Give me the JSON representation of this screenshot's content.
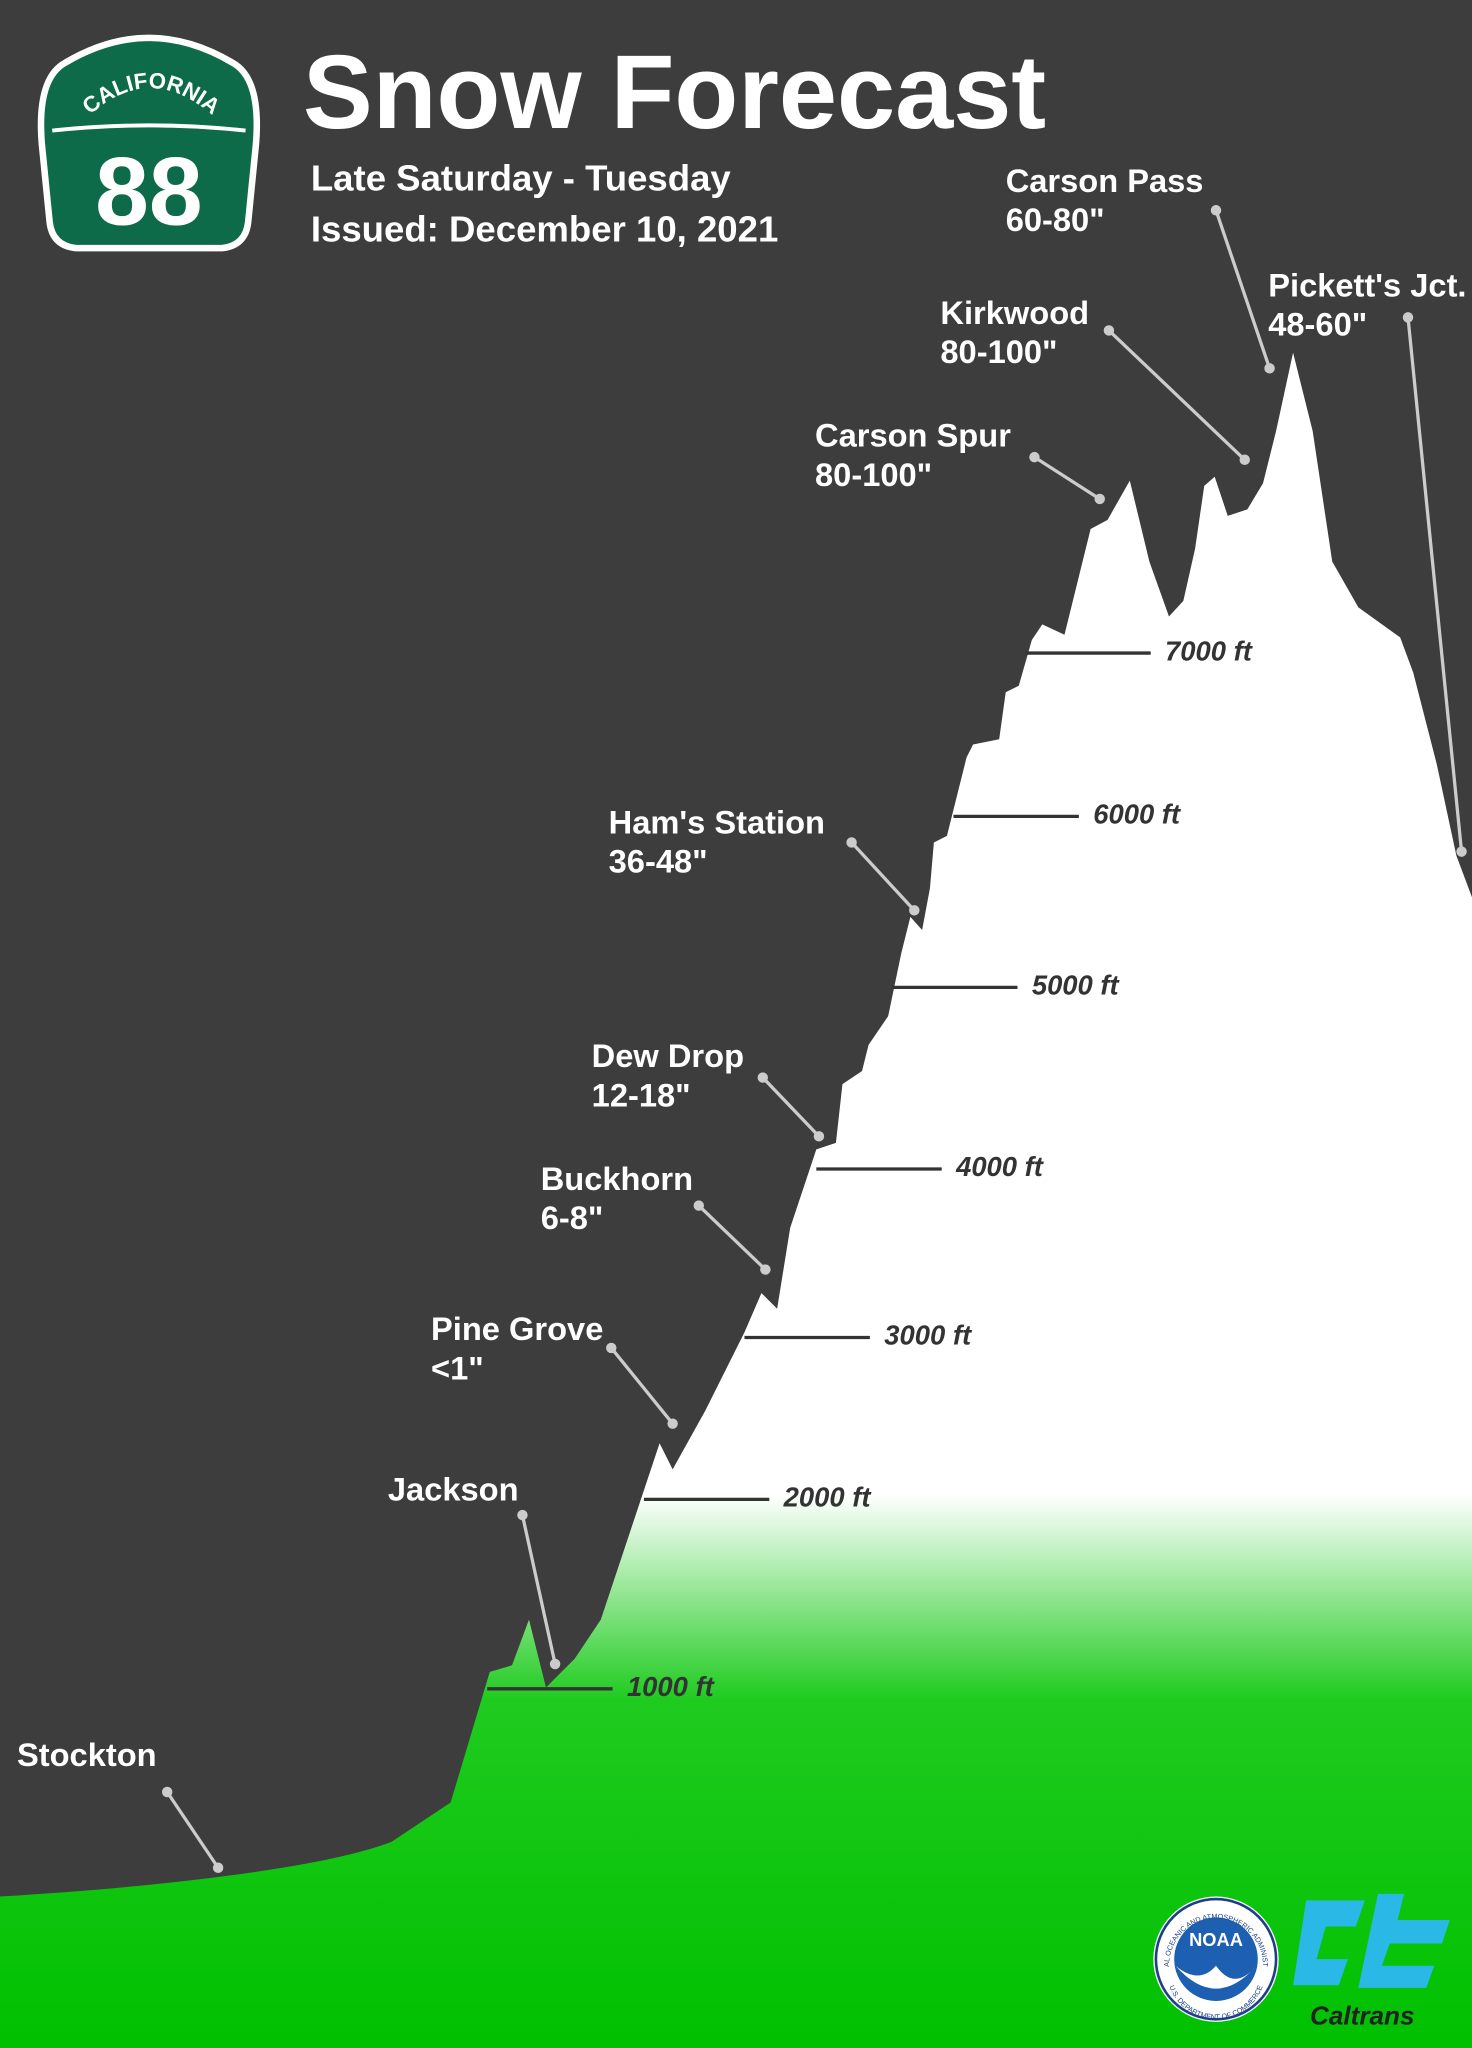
{
  "header": {
    "title": "Snow Forecast",
    "subtitle": [
      "Late Saturday - Tuesday",
      "Issued: December 10, 2021"
    ]
  },
  "shield": {
    "state": "CALIFORNIA",
    "route": "88"
  },
  "locations": [
    {
      "name": "Carson Pass",
      "snow": "60-80\""
    },
    {
      "name": "Pickett's Jct.",
      "snow": "48-60\""
    },
    {
      "name": "Kirkwood",
      "snow": "80-100\""
    },
    {
      "name": "Carson Spur",
      "snow": "80-100\""
    },
    {
      "name": "Ham's Station",
      "snow": "36-48\""
    },
    {
      "name": "Dew Drop",
      "snow": "12-18\""
    },
    {
      "name": "Buckhorn",
      "snow": "6-8\""
    },
    {
      "name": "Pine Grove",
      "snow": "<1\""
    },
    {
      "name": "Jackson",
      "snow": null
    },
    {
      "name": "Stockton",
      "snow": null
    }
  ],
  "elevations": [
    "7000 ft",
    "6000 ft",
    "5000 ft",
    "4000 ft",
    "3000 ft",
    "2000 ft",
    "1000 ft"
  ],
  "logos": {
    "noaa": "NOAA",
    "noaa_ring_top": "NATIONAL OCEANIC AND ATMOSPHERIC ADMINISTRATION",
    "noaa_ring_bottom": "U.S. DEPARTMENT OF COMMERCE",
    "caltrans": "Caltrans"
  }
}
